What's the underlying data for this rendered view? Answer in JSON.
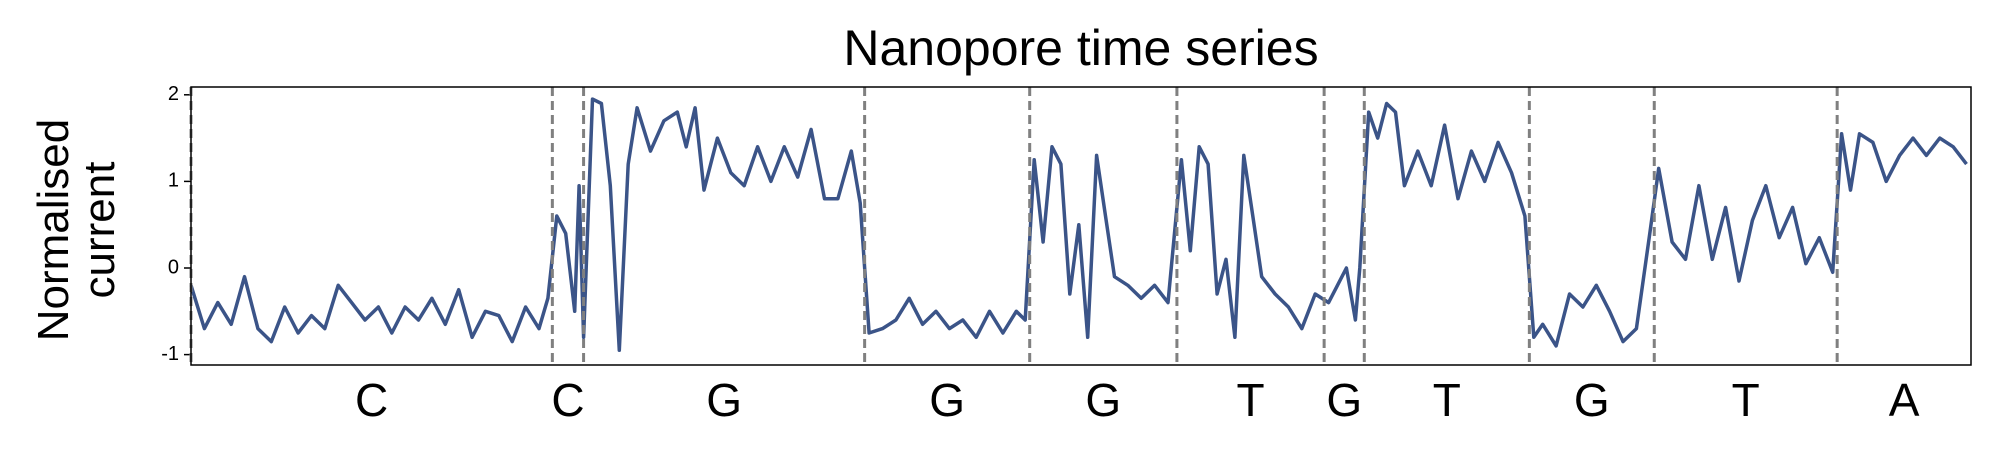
{
  "chart_data": {
    "type": "line",
    "title": "Nanopore time series",
    "ylabel": "Normalised current",
    "color": "#3b5488",
    "x": [
      0,
      3,
      6,
      9,
      12,
      15,
      18,
      21,
      24,
      27,
      30,
      33,
      36,
      39,
      42,
      45,
      48,
      51,
      54,
      57,
      60,
      63,
      66,
      69,
      72,
      75,
      78,
      80,
      82,
      84,
      86,
      87,
      88,
      90,
      92,
      94,
      96,
      98,
      100,
      103,
      106,
      109,
      111,
      113,
      115,
      118,
      121,
      124,
      127,
      130,
      133,
      136,
      139,
      142,
      145,
      148,
      150,
      152,
      155,
      158,
      161,
      164,
      167,
      170,
      173,
      176,
      179,
      182,
      185,
      187,
      189,
      191,
      193,
      195,
      197,
      199,
      201,
      203,
      205,
      207,
      210,
      213,
      216,
      219,
      222,
      224,
      226,
      228,
      230,
      232,
      234,
      236,
      238,
      240,
      243,
      246,
      249,
      252,
      255,
      257,
      259,
      261,
      262,
      264,
      266,
      268,
      270,
      272,
      275,
      278,
      281,
      284,
      287,
      290,
      293,
      296,
      299,
      301,
      303,
      306,
      309,
      312,
      315,
      318,
      321,
      324,
      327,
      329,
      332,
      335,
      338,
      341,
      344,
      347,
      350,
      353,
      356,
      359,
      362,
      365,
      368,
      370,
      372,
      374,
      377,
      380,
      383,
      386,
      389,
      392,
      395,
      398
    ],
    "values": [
      -0.2,
      -0.7,
      -0.4,
      -0.65,
      -0.1,
      -0.7,
      -0.85,
      -0.45,
      -0.75,
      -0.55,
      -0.7,
      -0.2,
      -0.4,
      -0.6,
      -0.45,
      -0.75,
      -0.45,
      -0.6,
      -0.35,
      -0.65,
      -0.25,
      -0.8,
      -0.5,
      -0.55,
      -0.85,
      -0.45,
      -0.7,
      -0.35,
      0.6,
      0.4,
      -0.5,
      0.95,
      -0.8,
      1.95,
      1.9,
      0.95,
      -0.95,
      1.2,
      1.85,
      1.35,
      1.7,
      1.8,
      1.4,
      1.85,
      0.9,
      1.5,
      1.1,
      0.95,
      1.4,
      1.0,
      1.4,
      1.05,
      1.6,
      0.8,
      0.8,
      1.35,
      0.75,
      -0.75,
      -0.7,
      -0.6,
      -0.35,
      -0.65,
      -0.5,
      -0.7,
      -0.6,
      -0.8,
      -0.5,
      -0.75,
      -0.5,
      -0.6,
      1.25,
      0.3,
      1.4,
      1.2,
      -0.3,
      0.5,
      -0.8,
      1.3,
      0.6,
      -0.1,
      -0.2,
      -0.35,
      -0.2,
      -0.4,
      1.25,
      0.2,
      1.4,
      1.2,
      -0.3,
      0.1,
      -0.8,
      1.3,
      0.6,
      -0.1,
      -0.3,
      -0.45,
      -0.7,
      -0.3,
      -0.4,
      -0.2,
      0,
      -0.6,
      0,
      1.8,
      1.5,
      1.9,
      1.8,
      0.95,
      1.35,
      0.95,
      1.65,
      0.8,
      1.35,
      1.0,
      1.45,
      1.1,
      0.6,
      -0.8,
      -0.65,
      -0.9,
      -0.3,
      -0.45,
      -0.2,
      -0.5,
      -0.85,
      -0.7,
      0.4,
      1.15,
      0.3,
      0.1,
      0.95,
      0.1,
      0.7,
      -0.15,
      0.55,
      0.95,
      0.35,
      0.7,
      0.05,
      0.35,
      -0.05,
      1.55,
      0.9,
      1.55,
      1.45,
      1.0,
      1.3,
      1.5,
      1.3,
      1.5,
      1.4,
      1.2
    ],
    "xlim": [
      0,
      399
    ],
    "ylim": [
      -1.12,
      2.09
    ],
    "yticks": [
      -1,
      0,
      1,
      2
    ],
    "boundaries": [
      0,
      81,
      88,
      151,
      188,
      221,
      254,
      263,
      300,
      328,
      369
    ],
    "bases": [
      "C",
      "C",
      "G",
      "G",
      "G",
      "T",
      "G",
      "T",
      "G",
      "T",
      "A"
    ]
  }
}
